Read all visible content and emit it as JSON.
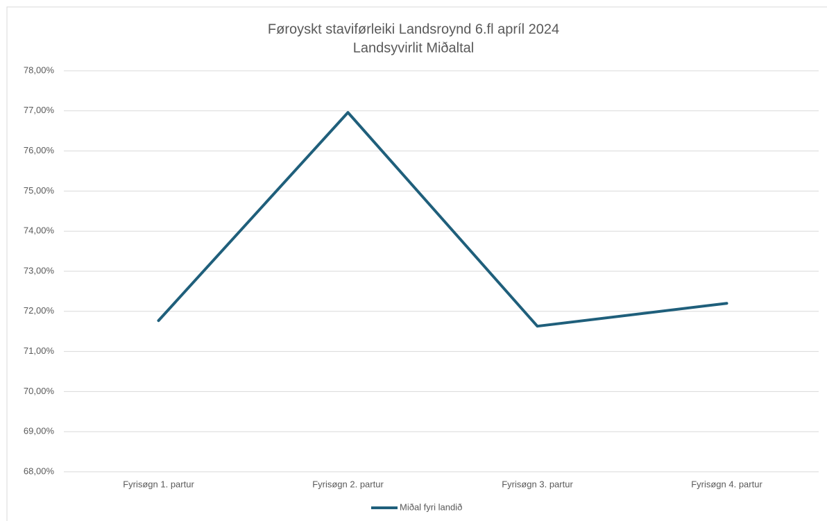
{
  "chart_data": {
    "type": "line",
    "title": "Føroyskt staviførleiki Landsroynd 6.fl apríl 2024",
    "subtitle": "Landsyvirlit Miðaltal",
    "categories": [
      "Fyrisøgn 1. partur",
      "Fyrisøgn 2. partur",
      "Fyrisøgn 3. partur",
      "Fyrisøgn 4. partur"
    ],
    "series": [
      {
        "name": "Miðal fyri landið",
        "color": "#1f5f7b",
        "values": [
          71.77,
          76.96,
          71.63,
          72.2
        ]
      }
    ],
    "ylim": [
      68,
      78
    ],
    "yticks": [
      {
        "value": 68,
        "label": "68,00%"
      },
      {
        "value": 69,
        "label": "69,00%"
      },
      {
        "value": 70,
        "label": "70,00%"
      },
      {
        "value": 71,
        "label": "71,00%"
      },
      {
        "value": 72,
        "label": "72,00%"
      },
      {
        "value": 73,
        "label": "73,00%"
      },
      {
        "value": 74,
        "label": "74,00%"
      },
      {
        "value": 75,
        "label": "75,00%"
      },
      {
        "value": 76,
        "label": "76,00%"
      },
      {
        "value": 77,
        "label": "77,00%"
      },
      {
        "value": 78,
        "label": "78,00%"
      }
    ],
    "grid": true,
    "legend": "bottom"
  }
}
